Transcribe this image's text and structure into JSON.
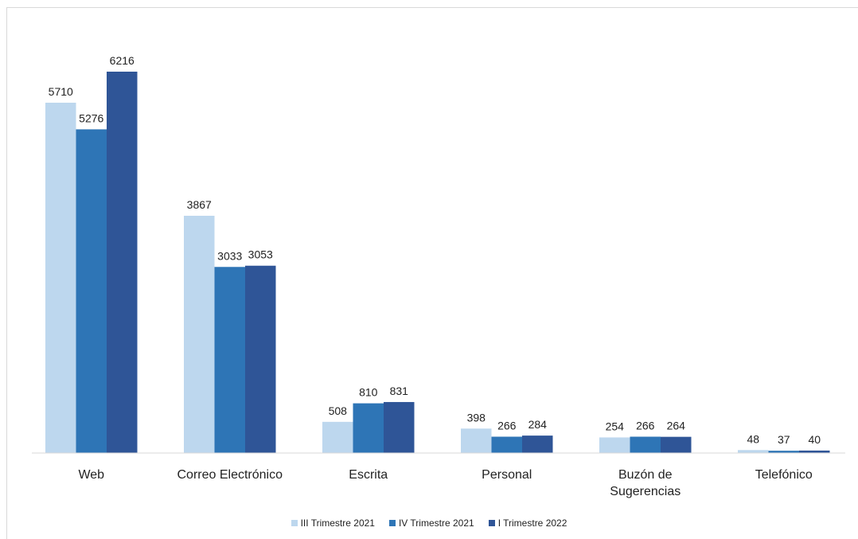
{
  "chart_data": {
    "type": "bar",
    "categories": [
      "Web",
      "Correo Electrónico",
      "Escrita",
      "Personal",
      "Buzón de Sugerencias",
      "Telefónico"
    ],
    "category_lines": [
      [
        "Web"
      ],
      [
        "Correo Electrónico"
      ],
      [
        "Escrita"
      ],
      [
        "Personal"
      ],
      [
        "Buzón de",
        "Sugerencias"
      ],
      [
        "Telefónico"
      ]
    ],
    "series": [
      {
        "name": "III Trimestre 2021",
        "color": "#BDD7EE",
        "values": [
          5710,
          3867,
          508,
          398,
          254,
          48
        ]
      },
      {
        "name": "IV Trimestre 2021",
        "color": "#2E75B6",
        "values": [
          5276,
          3033,
          810,
          266,
          266,
          37
        ]
      },
      {
        "name": "I Trimestre 2022",
        "color": "#2F5597",
        "values": [
          6216,
          3053,
          831,
          284,
          264,
          40
        ]
      }
    ],
    "title": "",
    "xlabel": "",
    "ylabel": "",
    "ylim": [
      0,
      6216
    ],
    "grid": false,
    "legend_position": "bottom"
  }
}
